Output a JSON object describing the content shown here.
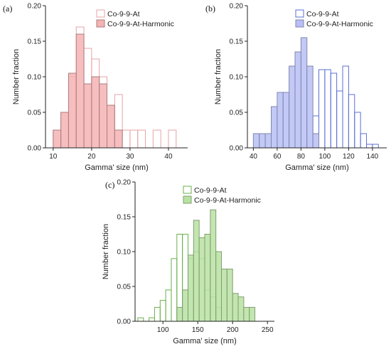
{
  "chart_data": [
    {
      "type": "bar",
      "panel_label": "(a)",
      "xlabel": "Gamma' size (nm)",
      "ylabel": "Number fraction",
      "xlim": [
        8,
        45
      ],
      "ylim": [
        0,
        0.2
      ],
      "bin_width": 2,
      "xticks": [
        10,
        20,
        30,
        40
      ],
      "xtick_labels": [
        "10",
        "20",
        "30",
        "40"
      ],
      "yticks": [
        0,
        0.05,
        0.1,
        0.15,
        0.2
      ],
      "ytick_labels": [
        "0.00",
        "0.05",
        "0.10",
        "0.15",
        "0.20"
      ],
      "legend_position": "top-right",
      "series": [
        {
          "name": "Co-9-9-At",
          "style": "outline",
          "color": "#e8a3a5",
          "bins": [
            {
              "x": 11,
              "y": 0.025
            },
            {
              "x": 13,
              "y": 0.05
            },
            {
              "x": 15,
              "y": 0.1
            },
            {
              "x": 17,
              "y": 0.17
            },
            {
              "x": 19,
              "y": 0.14
            },
            {
              "x": 21,
              "y": 0.125
            },
            {
              "x": 23,
              "y": 0.1
            },
            {
              "x": 25,
              "y": 0.06
            },
            {
              "x": 27,
              "y": 0.075
            },
            {
              "x": 29,
              "y": 0.025
            },
            {
              "x": 31,
              "y": 0.025
            },
            {
              "x": 33,
              "y": 0.025
            },
            {
              "x": 37,
              "y": 0.025
            },
            {
              "x": 41,
              "y": 0.025
            }
          ]
        },
        {
          "name": "Co-9-9-At-Harmonic",
          "style": "filled",
          "color": "#f4b3b4",
          "bins": [
            {
              "x": 11,
              "y": 0.025
            },
            {
              "x": 13,
              "y": 0.05
            },
            {
              "x": 15,
              "y": 0.105
            },
            {
              "x": 17,
              "y": 0.16
            },
            {
              "x": 19,
              "y": 0.09
            },
            {
              "x": 21,
              "y": 0.1
            },
            {
              "x": 23,
              "y": 0.09
            },
            {
              "x": 25,
              "y": 0.06
            },
            {
              "x": 27,
              "y": 0.025
            }
          ]
        }
      ]
    },
    {
      "type": "bar",
      "panel_label": "(b)",
      "xlabel": "Gamma' size (nm)",
      "ylabel": "Number fraction",
      "xlim": [
        35,
        152
      ],
      "ylim": [
        0,
        0.2
      ],
      "bin_width": 5,
      "xticks": [
        40,
        60,
        80,
        100,
        120,
        140
      ],
      "xtick_labels": [
        "40",
        "60",
        "80",
        "100",
        "120",
        "140"
      ],
      "yticks": [
        0,
        0.05,
        0.1,
        0.15,
        0.2
      ],
      "ytick_labels": [
        "0.00",
        "0.05",
        "0.10",
        "0.15",
        "0.20"
      ],
      "legend_position": "top-right",
      "series": [
        {
          "name": "Co-9-9-At",
          "style": "outline",
          "color": "#5b6fd6",
          "bins": [
            {
              "x": 92.5,
              "y": 0.045
            },
            {
              "x": 97.5,
              "y": 0.11
            },
            {
              "x": 102.5,
              "y": 0.11
            },
            {
              "x": 107.5,
              "y": 0.105
            },
            {
              "x": 112.5,
              "y": 0.08
            },
            {
              "x": 117.5,
              "y": 0.115
            },
            {
              "x": 122.5,
              "y": 0.075
            },
            {
              "x": 127.5,
              "y": 0.05
            },
            {
              "x": 132.5,
              "y": 0.02
            },
            {
              "x": 137.5,
              "y": 0.005
            },
            {
              "x": 142.5,
              "y": 0.005
            }
          ]
        },
        {
          "name": "Co-9-9-At-Harmonic",
          "style": "filled",
          "color": "#b9bff5",
          "bins": [
            {
              "x": 42.5,
              "y": 0.02
            },
            {
              "x": 47.5,
              "y": 0.02
            },
            {
              "x": 52.5,
              "y": 0.02
            },
            {
              "x": 57.5,
              "y": 0.058
            },
            {
              "x": 62.5,
              "y": 0.078
            },
            {
              "x": 67.5,
              "y": 0.078
            },
            {
              "x": 72.5,
              "y": 0.115
            },
            {
              "x": 77.5,
              "y": 0.135
            },
            {
              "x": 82.5,
              "y": 0.155
            },
            {
              "x": 87.5,
              "y": 0.115
            },
            {
              "x": 92.5,
              "y": 0.02
            }
          ]
        }
      ]
    },
    {
      "type": "bar",
      "panel_label": "(c)",
      "xlabel": "Gamma' size (nm)",
      "ylabel": "Number fraction",
      "xlim": [
        60,
        260
      ],
      "ylim": [
        0,
        0.2
      ],
      "bin_width": 8,
      "xticks": [
        100,
        150,
        200,
        250
      ],
      "xtick_labels": [
        "100",
        "150",
        "200",
        "250"
      ],
      "yticks": [
        0,
        0.05,
        0.1,
        0.15,
        0.2
      ],
      "ytick_labels": [
        "0.00",
        "0.05",
        "0.10",
        "0.15",
        "0.20"
      ],
      "legend_position": "top-left",
      "series": [
        {
          "name": "Co-9-9-At",
          "style": "outline",
          "color": "#6ab04c",
          "bins": [
            {
              "x": 68,
              "y": 0.005
            },
            {
              "x": 84,
              "y": 0.005
            },
            {
              "x": 92,
              "y": 0.02
            },
            {
              "x": 100,
              "y": 0.03
            },
            {
              "x": 108,
              "y": 0.045
            },
            {
              "x": 116,
              "y": 0.09
            },
            {
              "x": 124,
              "y": 0.125
            },
            {
              "x": 132,
              "y": 0.125
            },
            {
              "x": 140,
              "y": 0.09
            },
            {
              "x": 148,
              "y": 0.1
            },
            {
              "x": 156,
              "y": 0.09
            },
            {
              "x": 164,
              "y": 0.045
            },
            {
              "x": 172,
              "y": 0.035
            },
            {
              "x": 180,
              "y": 0.02
            }
          ]
        },
        {
          "name": "Co-9-9-At-Harmonic",
          "style": "filled",
          "color": "#b8e2a2",
          "bins": [
            {
              "x": 124,
              "y": 0.02
            },
            {
              "x": 132,
              "y": 0.045
            },
            {
              "x": 140,
              "y": 0.095
            },
            {
              "x": 148,
              "y": 0.145
            },
            {
              "x": 156,
              "y": 0.12
            },
            {
              "x": 164,
              "y": 0.125
            },
            {
              "x": 172,
              "y": 0.16
            },
            {
              "x": 180,
              "y": 0.1
            },
            {
              "x": 188,
              "y": 0.075
            },
            {
              "x": 196,
              "y": 0.075
            },
            {
              "x": 204,
              "y": 0.04
            },
            {
              "x": 212,
              "y": 0.035
            },
            {
              "x": 220,
              "y": 0.02
            },
            {
              "x": 228,
              "y": 0.02
            }
          ]
        }
      ]
    }
  ]
}
